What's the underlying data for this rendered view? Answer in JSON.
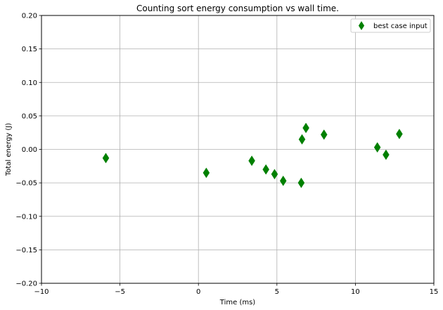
{
  "chart_data": {
    "type": "scatter",
    "title": "Counting sort energy consumption vs wall time.",
    "xlabel": "Time (ms)",
    "ylabel": "Total energy (J)",
    "xlim": [
      -10,
      15
    ],
    "ylim": [
      -0.2,
      0.2
    ],
    "xticks": [
      -10,
      -5,
      0,
      5,
      10,
      15
    ],
    "xtick_labels": [
      "−10",
      "−5",
      "0",
      "5",
      "10",
      "15"
    ],
    "yticks": [
      -0.2,
      -0.15,
      -0.1,
      -0.05,
      0.0,
      0.05,
      0.1,
      0.15,
      0.2
    ],
    "ytick_labels": [
      "−0.20",
      "−0.15",
      "−0.10",
      "−0.05",
      "0.00",
      "0.05",
      "0.10",
      "0.15",
      "0.20"
    ],
    "grid": true,
    "legend_position": "top-right",
    "series": [
      {
        "name": "best case input",
        "marker": "thin-diamond",
        "color": "#008000",
        "points": [
          {
            "x": -5.9,
            "y": -0.013
          },
          {
            "x": 0.5,
            "y": -0.035
          },
          {
            "x": 3.4,
            "y": -0.017
          },
          {
            "x": 4.3,
            "y": -0.03
          },
          {
            "x": 4.85,
            "y": -0.037
          },
          {
            "x": 5.4,
            "y": -0.047
          },
          {
            "x": 6.55,
            "y": -0.05
          },
          {
            "x": 6.6,
            "y": 0.015
          },
          {
            "x": 6.85,
            "y": 0.032
          },
          {
            "x": 8.0,
            "y": 0.022
          },
          {
            "x": 11.4,
            "y": 0.003
          },
          {
            "x": 11.95,
            "y": -0.008
          },
          {
            "x": 12.8,
            "y": 0.023
          }
        ]
      }
    ]
  }
}
